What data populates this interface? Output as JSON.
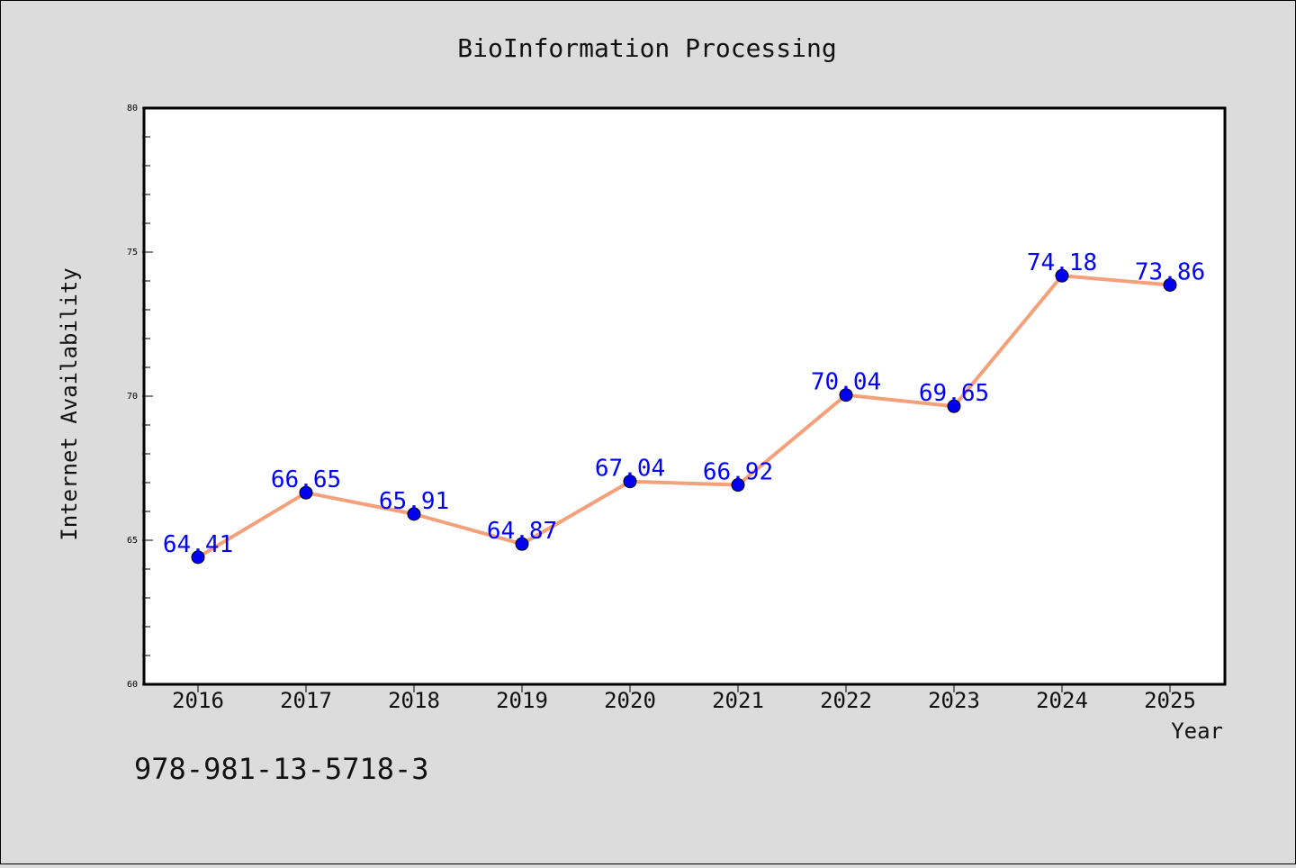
{
  "chart_data": {
    "type": "line",
    "title": "BioInformation Processing",
    "xlabel": "Year",
    "ylabel": "Internet Availability",
    "categories": [
      "2016",
      "2017",
      "2018",
      "2019",
      "2020",
      "2021",
      "2022",
      "2023",
      "2024",
      "2025"
    ],
    "series": [
      {
        "values": [
          64.41,
          66.65,
          65.91,
          64.87,
          67.04,
          66.92,
          70.04,
          69.65,
          74.18,
          73.86
        ],
        "data_labels": [
          "64.41",
          "66.65",
          "65.91",
          "64.87",
          "67.04",
          "66.92",
          "70.04",
          "69.65",
          "74.18",
          "73.86"
        ],
        "line_color": "#f4a07a",
        "marker_color": "#0000ee"
      }
    ],
    "ylim": [
      60,
      80
    ],
    "yticks": [
      "60",
      "65",
      "70",
      "75",
      "80"
    ],
    "grid": false,
    "legend": "none",
    "label_color": "#0000ff"
  },
  "annotation": "978-981-13-5718-3"
}
